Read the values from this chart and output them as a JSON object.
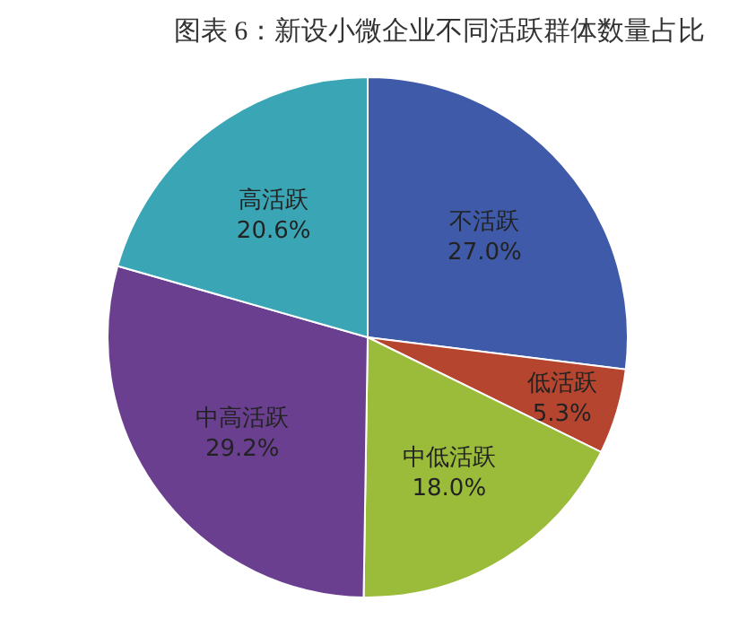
{
  "chart_data": {
    "type": "pie",
    "title": "图表 6：新设小微企业不同活跃群体数量占比",
    "categories": [
      "不活跃",
      "低活跃",
      "中低活跃",
      "中高活跃",
      "高活跃"
    ],
    "values": [
      27.0,
      5.3,
      18.0,
      29.2,
      20.6
    ],
    "value_labels": [
      "27.0%",
      "5.3%",
      "18.0%",
      "29.2%",
      "20.6%"
    ],
    "colors": [
      "#3f5aa8",
      "#b5452f",
      "#9bbb3a",
      "#6a3f8f",
      "#3aa6b5"
    ]
  }
}
